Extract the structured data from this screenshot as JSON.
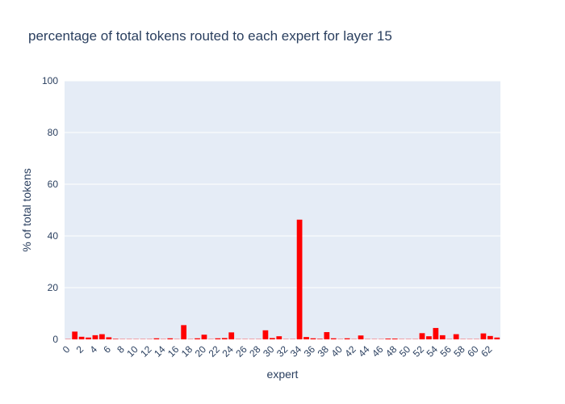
{
  "chart_data": {
    "type": "bar",
    "title": "percentage of total tokens routed to each expert for layer 15",
    "xlabel": "expert",
    "ylabel": "% of total tokens",
    "ylim": [
      0,
      100
    ],
    "yticks": [
      0,
      20,
      40,
      60,
      80,
      100
    ],
    "xticks": [
      0,
      2,
      4,
      6,
      8,
      10,
      12,
      14,
      16,
      18,
      20,
      22,
      24,
      26,
      28,
      30,
      32,
      34,
      36,
      38,
      40,
      42,
      44,
      46,
      48,
      50,
      52,
      54,
      56,
      58,
      60,
      62
    ],
    "x": [
      0,
      1,
      2,
      3,
      4,
      5,
      6,
      7,
      8,
      9,
      10,
      11,
      12,
      13,
      14,
      15,
      16,
      17,
      18,
      19,
      20,
      21,
      22,
      23,
      24,
      25,
      26,
      27,
      28,
      29,
      30,
      31,
      32,
      33,
      34,
      35,
      36,
      37,
      38,
      39,
      40,
      41,
      42,
      43,
      44,
      45,
      46,
      47,
      48,
      49,
      50,
      51,
      52,
      53,
      54,
      55,
      56,
      57,
      58,
      59,
      60,
      61,
      62,
      63
    ],
    "values": [
      0.1,
      3.0,
      1.0,
      0.7,
      1.6,
      2.0,
      0.8,
      0.2,
      0.1,
      0.1,
      0.1,
      0.1,
      0.1,
      0.4,
      0.1,
      0.4,
      0.1,
      5.5,
      0.1,
      0.4,
      1.8,
      0.1,
      0.4,
      0.5,
      2.7,
      0.1,
      0.1,
      0.1,
      0.1,
      3.5,
      0.5,
      1.2,
      0.1,
      0.1,
      46.3,
      0.9,
      0.4,
      0.2,
      2.8,
      0.4,
      0.1,
      0.4,
      0.1,
      1.5,
      0.1,
      0.1,
      0.1,
      0.3,
      0.3,
      0.1,
      0.1,
      0.1,
      2.4,
      1.2,
      4.4,
      1.6,
      0.1,
      2.0,
      0.1,
      0.1,
      0.1,
      2.3,
      1.3,
      0.7
    ],
    "bar_color": "#ff0000",
    "plot_background": "#e5ecf6",
    "grid": true
  }
}
